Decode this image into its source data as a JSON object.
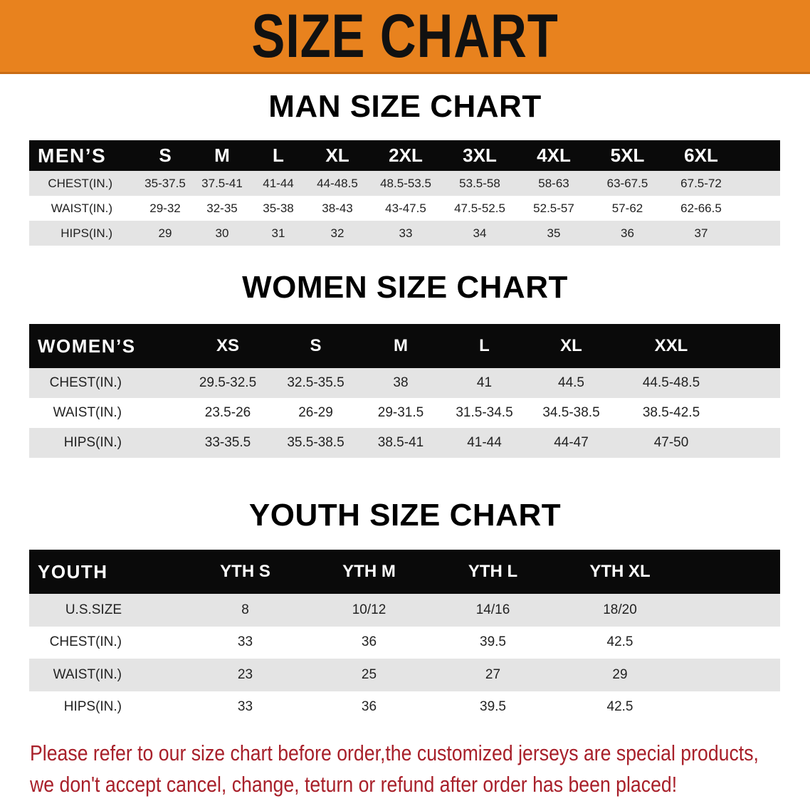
{
  "banner": {
    "title": "SIZE CHART",
    "color": "#e8821e"
  },
  "men": {
    "title": "MAN SIZE CHART",
    "header": [
      "MEN’S",
      "S",
      "M",
      "L",
      "XL",
      "2XL",
      "3XL",
      "4XL",
      "5XL",
      "6XL"
    ],
    "rows": [
      [
        "CHEST(IN.)",
        "35-37.5",
        "37.5-41",
        "41-44",
        "44-48.5",
        "48.5-53.5",
        "53.5-58",
        "58-63",
        "63-67.5",
        "67.5-72"
      ],
      [
        "WAIST(IN.)",
        "29-32",
        "32-35",
        "35-38",
        "38-43",
        "43-47.5",
        "47.5-52.5",
        "52.5-57",
        "57-62",
        "62-66.5"
      ],
      [
        "HIPS(IN.)",
        "29",
        "30",
        "31",
        "32",
        "33",
        "34",
        "35",
        "36",
        "37"
      ]
    ]
  },
  "women": {
    "title": "WOMEN SIZE CHART",
    "header": [
      "WOMEN’S",
      "XS",
      "S",
      "M",
      "L",
      "XL",
      "XXL"
    ],
    "rows": [
      [
        "CHEST(IN.)",
        "29.5-32.5",
        "32.5-35.5",
        "38",
        "41",
        "44.5",
        "44.5-48.5"
      ],
      [
        "WAIST(IN.)",
        "23.5-26",
        "26-29",
        "29-31.5",
        "31.5-34.5",
        "34.5-38.5",
        "38.5-42.5"
      ],
      [
        "HIPS(IN.)",
        "33-35.5",
        "35.5-38.5",
        "38.5-41",
        "41-44",
        "44-47",
        "47-50"
      ]
    ]
  },
  "youth": {
    "title": "YOUTH SIZE CHART",
    "header": [
      "YOUTH",
      "YTH S",
      "YTH M",
      "YTH L",
      "YTH XL"
    ],
    "rows": [
      [
        "U.S.SIZE",
        "8",
        "10/12",
        "14/16",
        "18/20"
      ],
      [
        "CHEST(IN.)",
        "33",
        "36",
        "39.5",
        "42.5"
      ],
      [
        "WAIST(IN.)",
        "23",
        "25",
        "27",
        "29"
      ],
      [
        "HIPS(IN.)",
        "33",
        "36",
        "39.5",
        "42.5"
      ]
    ]
  },
  "note": {
    "line1": "Please refer to our size chart before order,the customized jerseys are special products,",
    "line2": "we don't accept cancel, change, teturn or refund after order has been placed!",
    "color": "#a8202a"
  }
}
